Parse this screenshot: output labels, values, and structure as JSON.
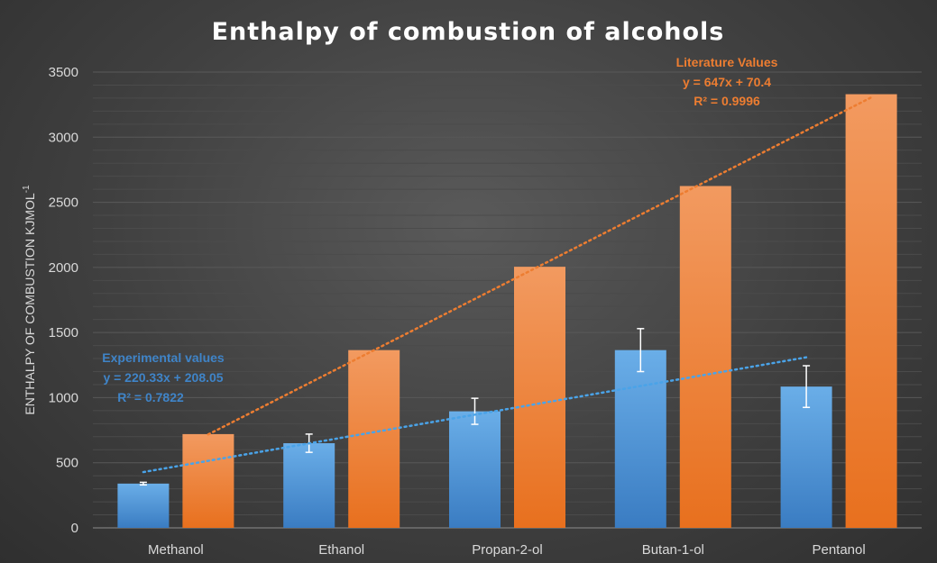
{
  "chart_data": {
    "type": "bar",
    "title": "Enthalpy of combustion of alcohols",
    "ylabel": "ENTHALPY OF COMBUSTION KJMOL",
    "ylabel_sup": "-1",
    "xlabel": "",
    "ylim": [
      0,
      3500
    ],
    "yticks": [
      0,
      500,
      1000,
      1500,
      2000,
      2500,
      3000,
      3500
    ],
    "grid": true,
    "legend": "none",
    "categories": [
      "Methanol",
      "Ethanol",
      "Propan-2-ol",
      "Butan-1-ol",
      "Pentanol"
    ],
    "series": [
      {
        "color": "#4a90d9",
        "values": [
          340,
          650,
          895,
          1365,
          1085
        ],
        "error": [
          10,
          70,
          100,
          165,
          160
        ],
        "trendline": {
          "slope": 220.33,
          "intercept": 208.05,
          "color": "#4aa3e8",
          "label_title": "Experimental values",
          "label_equation": "y = 220.33x + 208.05",
          "label_r2": "R² = 0.7822"
        }
      },
      {
        "color": "#ed7d31",
        "values": [
          720,
          1365,
          2005,
          2625,
          3330
        ],
        "trendline": {
          "slope": 647,
          "intercept": 70.4,
          "color": "#ed7d31",
          "label_title": "Literature Values",
          "label_equation": "y = 647x + 70.4",
          "label_r2": "R² = 0.9996"
        }
      }
    ]
  }
}
